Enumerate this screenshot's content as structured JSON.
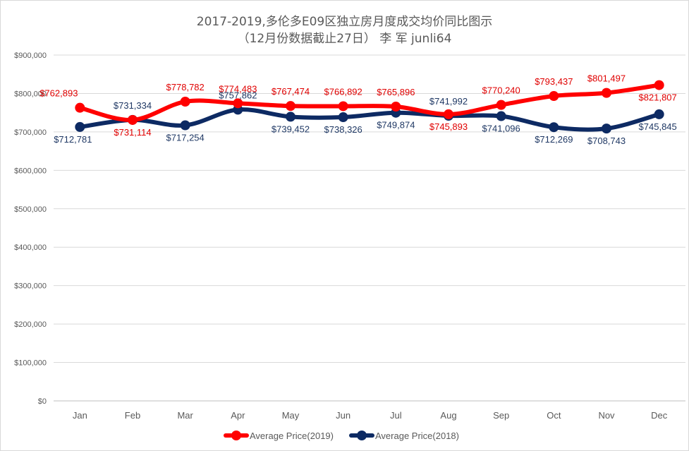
{
  "chart_data": {
    "type": "line",
    "title": "2017-2019,多伦多E09区独立房月度成交均价同比图示",
    "subtitle": "（12月份数据截止27日） 李 军 junli64",
    "categories": [
      "Jan",
      "Feb",
      "Mar",
      "Apr",
      "May",
      "Jun",
      "Jul",
      "Aug",
      "Sep",
      "Oct",
      "Nov",
      "Dec"
    ],
    "ylim": [
      0,
      900000
    ],
    "yticks": [
      0,
      100000,
      200000,
      300000,
      400000,
      500000,
      600000,
      700000,
      800000,
      900000
    ],
    "ytick_labels": [
      "$0",
      "$100,000",
      "$200,000",
      "$300,000",
      "$400,000",
      "$500,000",
      "$600,000",
      "$700,000",
      "$800,000",
      "$900,000"
    ],
    "grid": true,
    "legend_position": "bottom",
    "series": [
      {
        "name": "Average Price(2019)",
        "color": "#ff0000",
        "label_color": "#e00000",
        "values": [
          762893,
          731114,
          778782,
          774483,
          767474,
          766892,
          765896,
          745893,
          770240,
          793437,
          801497,
          821807
        ],
        "labels": [
          "$762,893",
          "$731,114",
          "$778,782",
          "$774,483",
          "$767,474",
          "$766,892",
          "$765,896",
          "$745,893",
          "$770,240",
          "$793,437",
          "$801,497",
          "$821,807"
        ]
      },
      {
        "name": "Average Price(2018)",
        "color": "#0d2a63",
        "label_color": "#1f3864",
        "values": [
          712781,
          731334,
          717254,
          757862,
          739452,
          738326,
          749874,
          741992,
          741096,
          712269,
          708743,
          745845
        ],
        "labels": [
          "$712,781",
          "$731,334",
          "$717,254",
          "$757,862",
          "$739,452",
          "$738,326",
          "$749,874",
          "$741,992",
          "$741,096",
          "$712,269",
          "$708,743",
          "$745,845"
        ]
      }
    ]
  }
}
